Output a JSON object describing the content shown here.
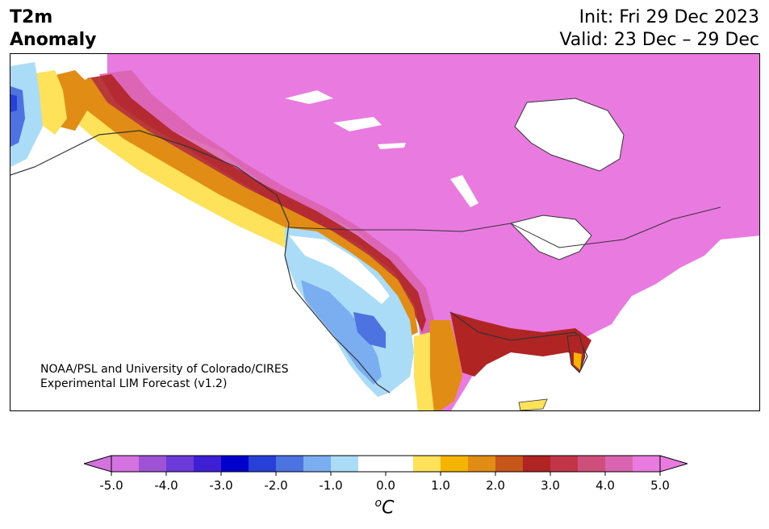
{
  "header": {
    "title_line1": "T2m",
    "title_line2": "Anomaly",
    "init": "Init: Fri 29 Dec 2023",
    "valid": "Valid: 23 Dec – 29 Dec"
  },
  "credit": {
    "line1": "NOAA/PSL and University of Colorado/CIRES",
    "line2": "Experimental LIM Forecast (v1.2)"
  },
  "colorbar": {
    "unit_base": "C",
    "unit_sup": "o",
    "ticks": [
      "-5.0",
      "-4.0",
      "-3.0",
      "-2.0",
      "-1.0",
      "0.0",
      "1.0",
      "2.0",
      "3.0",
      "4.0",
      "5.0"
    ],
    "colors": [
      "#d473e0",
      "#9f52d6",
      "#6b3ad9",
      "#3f1fd3",
      "#0000cc",
      "#2640d8",
      "#4c73e0",
      "#7aaef0",
      "#aadcf8",
      "#ffffff",
      "#ffffff",
      "#fde25a",
      "#f4b400",
      "#e08c15",
      "#c7561a",
      "#b02424",
      "#c23448",
      "#cf4f7c",
      "#da64b0",
      "#e87ae0"
    ],
    "extend_low_color": "#d473e0",
    "extend_high_color": "#e87ae0",
    "min": -5.0,
    "max": 5.0
  },
  "map": {
    "region": "North America",
    "colors": {
      "warm_max": "#e87ae0",
      "warm_4": "#da64b0",
      "warm_3": "#b02424",
      "warm_2": "#e08c15",
      "warm_1": "#fde25a",
      "neutral": "#ffffff",
      "cool_1": "#aadcf8",
      "cool_2": "#7aaef0",
      "cool_3": "#4c73e0",
      "cool_4": "#2640d8",
      "border": "#333333"
    }
  }
}
